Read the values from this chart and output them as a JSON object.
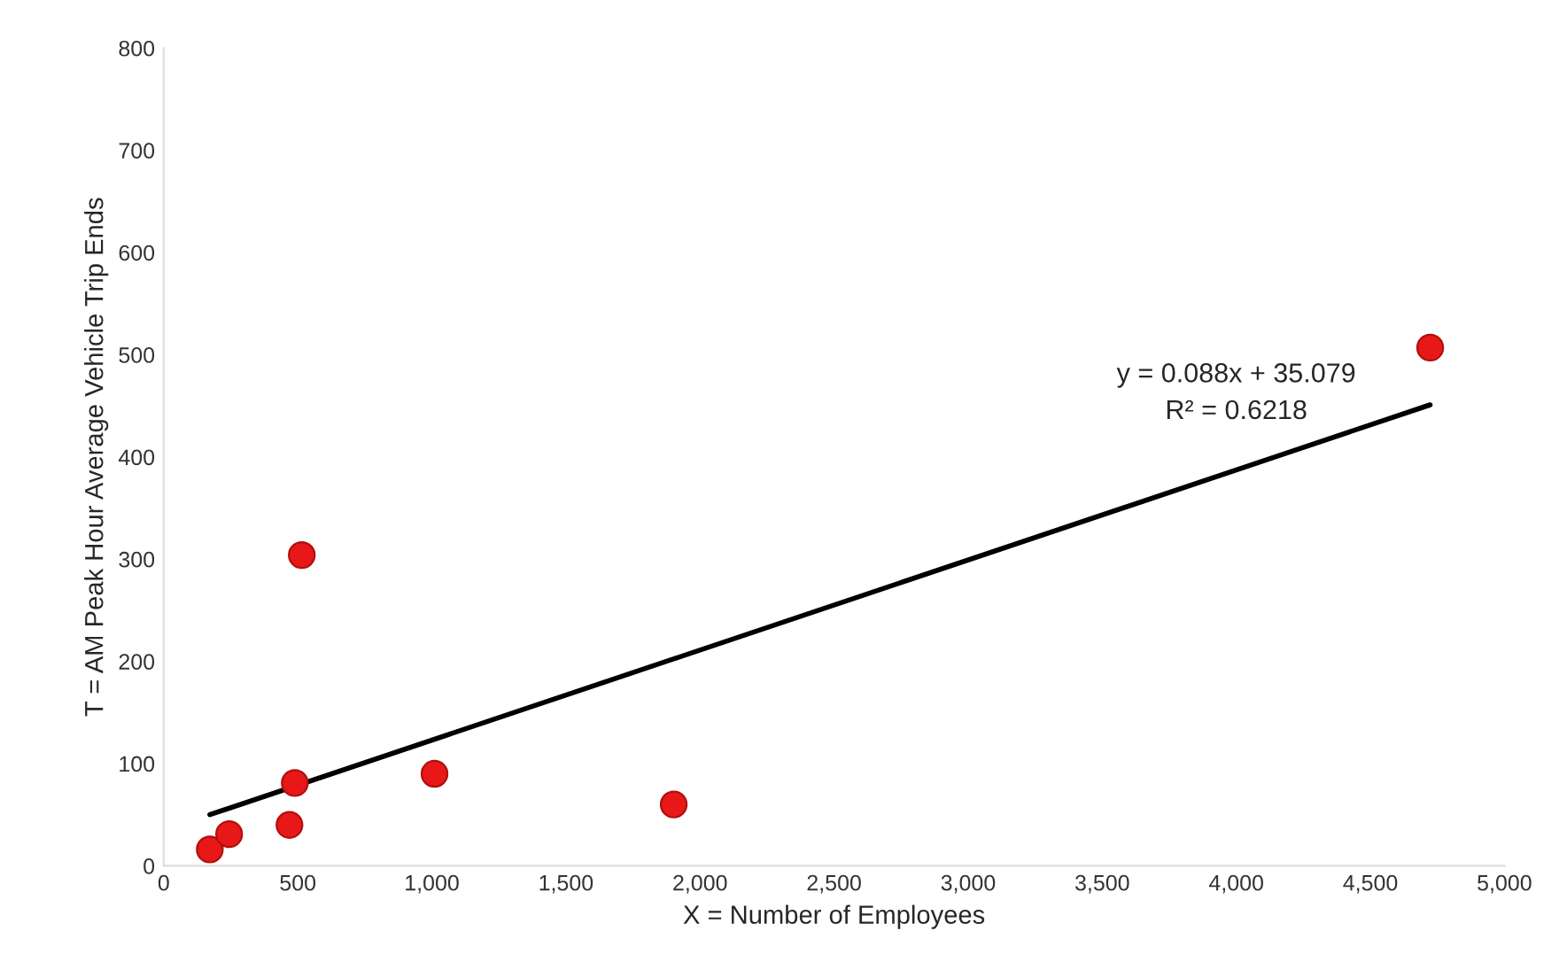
{
  "chart_data": {
    "type": "scatter",
    "xlabel": "X = Number of Employees",
    "ylabel": "T = AM Peak Hour Average Vehicle Trip Ends",
    "series": [
      {
        "color": "#e81818",
        "x": [
          172,
          244,
          469,
          489,
          515,
          1010,
          1902,
          4723
        ],
        "values": [
          16,
          31,
          40,
          81,
          304,
          90,
          60,
          507
        ]
      },
      {
        "type": "line",
        "marker": "none",
        "color": "#000000",
        "x": [
          172,
          4723
        ],
        "values": [
          50,
          451
        ]
      }
    ],
    "marker": "circle",
    "annotations": [
      "y = 0.088x + 35.079",
      "R² = 0.6218"
    ],
    "xlim": [
      0,
      5000
    ],
    "xticks": [
      0,
      500,
      {
        "value": 1000,
        "label": "1,000"
      },
      {
        "value": 1500,
        "label": "1,500"
      },
      {
        "value": 2000,
        "label": "2,000"
      },
      {
        "value": 2500,
        "label": "2,500"
      },
      {
        "value": 3000,
        "label": "3,000"
      },
      {
        "value": 3500,
        "label": "3,500"
      },
      {
        "value": 4000,
        "label": "4,000"
      },
      {
        "value": 4500,
        "label": "4,500"
      },
      {
        "value": 5000,
        "label": "5,000"
      }
    ],
    "ylim": [
      0,
      800
    ],
    "yticks": [
      0,
      100,
      200,
      300,
      400,
      500,
      600,
      700,
      800
    ],
    "grid": false,
    "legend": false
  }
}
